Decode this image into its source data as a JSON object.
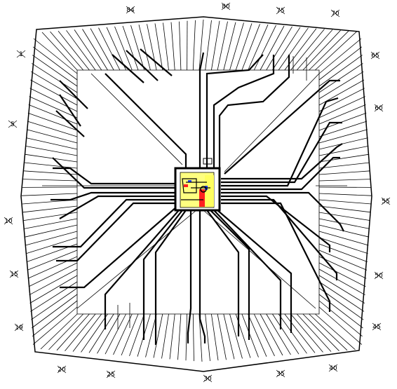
{
  "diagram": {
    "pin_labels": [
      {
        "id": "p1",
        "text": "1"
      },
      {
        "id": "p5",
        "text": "5"
      },
      {
        "id": "p10",
        "text": "10"
      },
      {
        "id": "p15",
        "text": "15"
      },
      {
        "id": "p19",
        "text": "19"
      },
      {
        "id": "p20",
        "text": "20"
      },
      {
        "id": "p25",
        "text": "25"
      },
      {
        "id": "p30",
        "text": "30"
      },
      {
        "id": "p35",
        "text": "35"
      },
      {
        "id": "p40",
        "text": "40"
      },
      {
        "id": "p45",
        "text": "45"
      },
      {
        "id": "p50",
        "text": "50"
      },
      {
        "id": "p55",
        "text": "55"
      },
      {
        "id": "p60",
        "text": "60"
      },
      {
        "id": "p65",
        "text": "65"
      },
      {
        "id": "p70",
        "text": "70"
      },
      {
        "id": "p75",
        "text": "75"
      },
      {
        "id": "p80",
        "text": "80"
      },
      {
        "id": "p84",
        "text": "84"
      }
    ],
    "colors": {
      "stroke": "#000000",
      "chip_yellow": "#ffff80",
      "chip_red": "#ff2020",
      "chip_blue": "#2040ff",
      "background": "#ffffff"
    }
  }
}
